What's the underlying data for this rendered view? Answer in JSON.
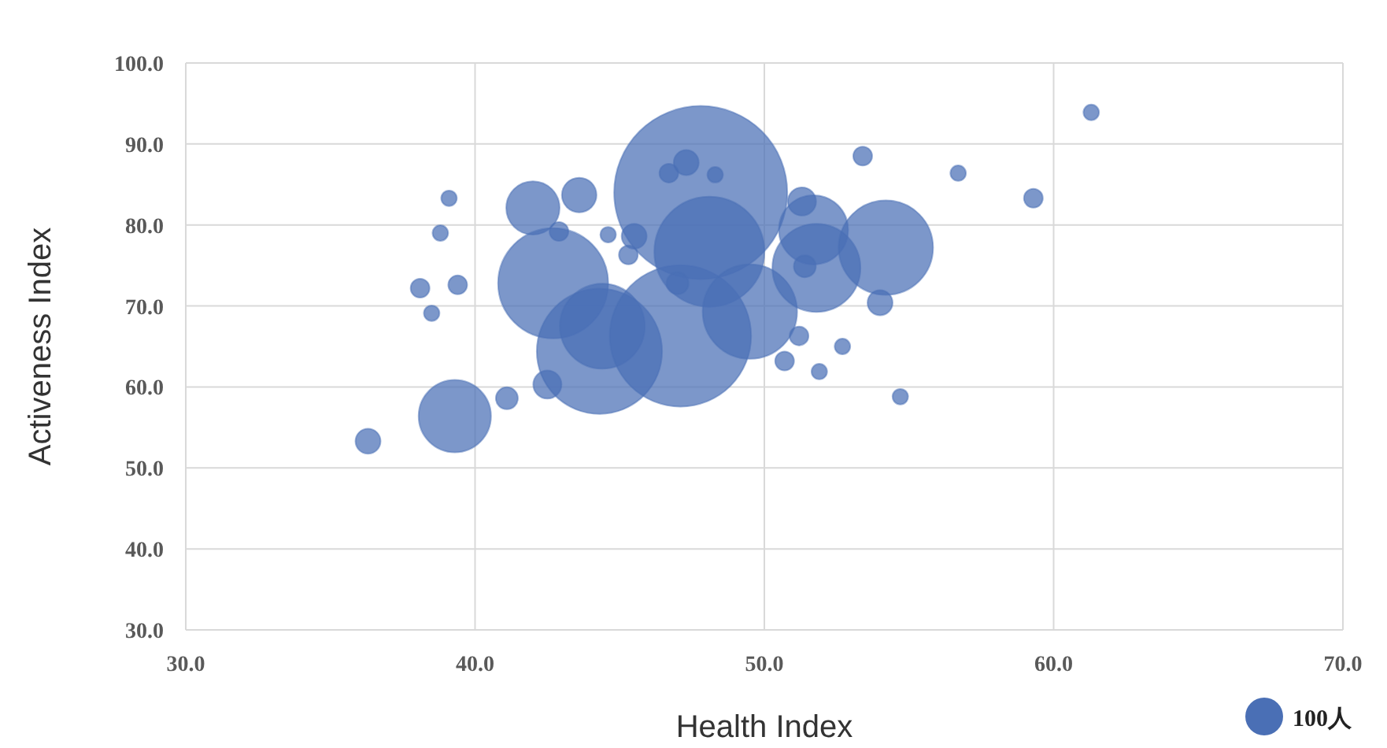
{
  "chart_data": {
    "type": "bubble",
    "xlabel": "Health Index",
    "ylabel": "Activeness Index",
    "xlim": [
      30,
      70
    ],
    "ylim": [
      30,
      100
    ],
    "xticks": [
      {
        "value": 30,
        "label": "30.0"
      },
      {
        "value": 40,
        "label": "40.0"
      },
      {
        "value": 50,
        "label": "50.0"
      },
      {
        "value": 60,
        "label": "60.0"
      },
      {
        "value": 70,
        "label": "70.0"
      }
    ],
    "yticks": [
      {
        "value": 30,
        "label": "30.0"
      },
      {
        "value": 40,
        "label": "40.0"
      },
      {
        "value": 50,
        "label": "50.0"
      },
      {
        "value": 60,
        "label": "60.0"
      },
      {
        "value": 70,
        "label": "70.0"
      },
      {
        "value": 80,
        "label": "80.0"
      },
      {
        "value": 90,
        "label": "90.0"
      },
      {
        "value": 100,
        "label": "100.0"
      }
    ],
    "grid": true,
    "size_legend": [
      {
        "value": 100,
        "label": "100人"
      }
    ],
    "series": [
      {
        "color": "#4a6fb5",
        "x": [
          36.3,
          39.3,
          41.1,
          42.5,
          38.1,
          38.5,
          39.4,
          38.8,
          39.1,
          42.0,
          43.6,
          42.9,
          44.6,
          45.5,
          42.7,
          44.3,
          44.4,
          47.1,
          47.8,
          48.1,
          49.5,
          51.7,
          51.8,
          54.2,
          51.3,
          53.4,
          56.7,
          59.3,
          61.3,
          54.7,
          51.9,
          52.7,
          50.7,
          54.0,
          47.3,
          46.7,
          48.3,
          51.4,
          47.0,
          51.2,
          45.3
        ],
        "values": [
          53.3,
          56.4,
          58.6,
          60.3,
          72.2,
          69.1,
          72.6,
          79.0,
          83.3,
          82.1,
          83.7,
          79.2,
          78.8,
          78.6,
          72.8,
          64.4,
          67.5,
          66.3,
          84.0,
          76.7,
          69.3,
          79.4,
          74.7,
          77.2,
          82.9,
          88.5,
          86.4,
          83.3,
          93.9,
          58.8,
          61.9,
          65.0,
          63.2,
          70.4,
          87.7,
          86.4,
          86.2,
          74.9,
          72.8,
          66.3,
          76.3
        ],
        "sizes": [
          44,
          367,
          34,
          56,
          25,
          17,
          25,
          17,
          17,
          200,
          84,
          25,
          17,
          44,
          850,
          1100,
          506,
          1400,
          2100,
          850,
          625,
          336,
          544,
          625,
          56,
          25,
          17,
          25,
          17,
          17,
          17,
          17,
          25,
          44,
          44,
          25,
          17,
          34,
          34,
          25,
          25
        ]
      }
    ]
  }
}
